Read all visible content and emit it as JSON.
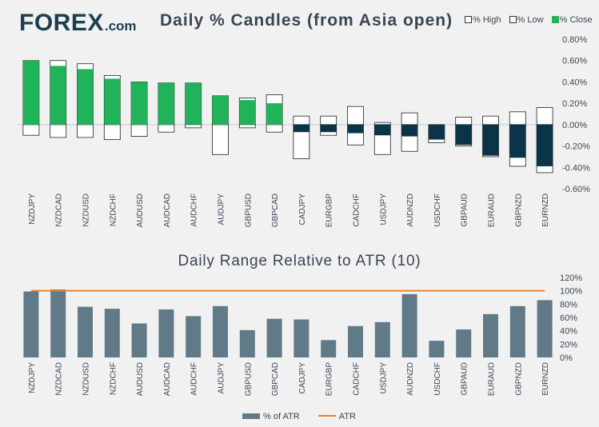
{
  "brand": {
    "prefix": "F",
    "o": "O",
    "suffix": "REX",
    "domain": ".com"
  },
  "chart_data": [
    {
      "type": "candlestick",
      "title": "Daily % Candles (from Asia open)",
      "legend": [
        {
          "label": "% High",
          "color": "#ffffff"
        },
        {
          "label": "% Low",
          "color": "#ffffff"
        },
        {
          "label": "% Close",
          "color": "#21b35a"
        }
      ],
      "categories": [
        "NZDJPY",
        "NZDCAD",
        "NZDUSD",
        "NZDCHF",
        "AUDUSD",
        "AUDCAD",
        "AUDCHF",
        "AUDJPY",
        "GBPUSD",
        "GBPCAD",
        "CADJPY",
        "EURGBP",
        "CADCHF",
        "USDJPY",
        "AUDNZD",
        "USDCHF",
        "GBPAUD",
        "EURAUD",
        "GBPNZD",
        "EURNZD"
      ],
      "high": [
        0.6,
        0.6,
        0.57,
        0.46,
        0.4,
        0.39,
        0.39,
        0.27,
        0.25,
        0.28,
        0.08,
        0.08,
        0.17,
        0.02,
        0.11,
        0.0,
        0.07,
        0.08,
        0.12,
        0.16
      ],
      "low": [
        -0.1,
        -0.12,
        -0.12,
        -0.14,
        -0.11,
        -0.07,
        -0.03,
        -0.28,
        -0.03,
        -0.07,
        -0.32,
        -0.1,
        -0.19,
        -0.28,
        -0.25,
        -0.17,
        -0.2,
        -0.3,
        -0.39,
        -0.45
      ],
      "close": [
        0.6,
        0.55,
        0.52,
        0.43,
        0.4,
        0.39,
        0.39,
        0.27,
        0.23,
        0.2,
        -0.07,
        -0.07,
        -0.08,
        -0.1,
        -0.11,
        -0.14,
        -0.19,
        -0.29,
        -0.31,
        -0.39
      ],
      "ylim": [
        -0.6,
        0.8
      ],
      "yticks": [
        "0.80%",
        "0.60%",
        "0.40%",
        "0.20%",
        "0.00%",
        "-0.20%",
        "-0.40%",
        "-0.60%"
      ],
      "up_color": "#21b35a",
      "down_color": "#0c3448"
    },
    {
      "type": "bar",
      "title": "Daily Range Relative to ATR (10)",
      "categories": [
        "NZDJPY",
        "NZDCAD",
        "NZDUSD",
        "NZDCHF",
        "AUDUSD",
        "AUDCAD",
        "AUDCHF",
        "AUDJPY",
        "GBPUSD",
        "GBPCAD",
        "CADJPY",
        "EURGBP",
        "CADCHF",
        "USDJPY",
        "AUDNZD",
        "USDCHF",
        "GBPAUD",
        "EURAUD",
        "GBPNZD",
        "EURNZD"
      ],
      "series": [
        {
          "name": "% of ATR",
          "values": [
            99,
            102,
            76,
            73,
            51,
            72,
            62,
            77,
            41,
            58,
            57,
            26,
            47,
            53,
            95,
            25,
            42,
            65,
            77,
            86
          ],
          "color": "#617a87"
        },
        {
          "name": "ATR",
          "values": [
            100,
            100,
            100,
            100,
            100,
            100,
            100,
            100,
            100,
            100,
            100,
            100,
            100,
            100,
            100,
            100,
            100,
            100,
            100,
            100
          ],
          "color": "#e8822d"
        }
      ],
      "ylim": [
        0,
        120
      ],
      "yticks": [
        "120%",
        "100%",
        "80%",
        "60%",
        "40%",
        "20%",
        "0%"
      ]
    }
  ]
}
